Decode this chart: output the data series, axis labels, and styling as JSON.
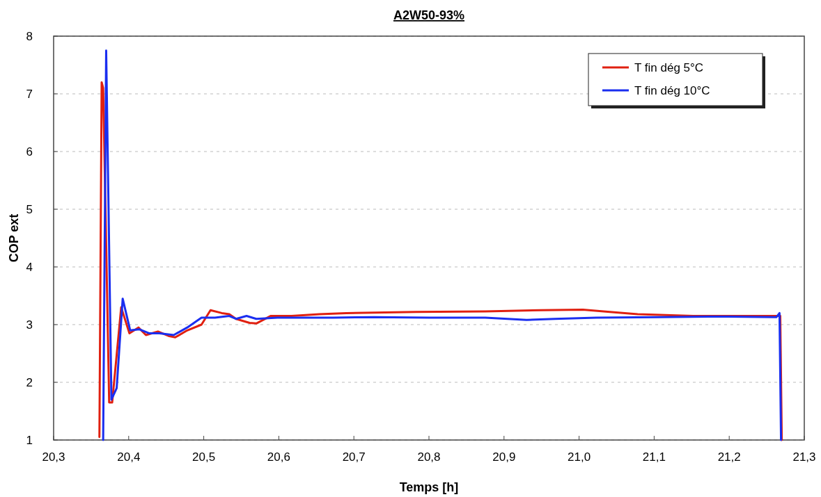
{
  "chart_data": {
    "type": "line",
    "title": "A2W50-93%",
    "xlabel": "Temps [h]",
    "ylabel": "COP ext",
    "xlim": [
      20.3,
      21.3
    ],
    "xticks": [
      {
        "value": 20.3,
        "label": "20,3"
      },
      {
        "value": 20.4,
        "label": "20,4"
      },
      {
        "value": 20.5,
        "label": "20,5"
      },
      {
        "value": 20.6,
        "label": "20,6"
      },
      {
        "value": 20.7,
        "label": "20,7"
      },
      {
        "value": 20.8,
        "label": "20,8"
      },
      {
        "value": 20.9,
        "label": "20,9"
      },
      {
        "value": 21.0,
        "label": "21,0"
      },
      {
        "value": 21.1,
        "label": "21,1"
      },
      {
        "value": 21.2,
        "label": "21,2"
      },
      {
        "value": 21.3,
        "label": "21,3"
      }
    ],
    "ylim": [
      1,
      8
    ],
    "yticks": [
      1,
      2,
      3,
      4,
      5,
      6,
      7,
      8
    ],
    "grid": "y",
    "legend": "top right",
    "line_style": "solid",
    "marker": "none",
    "series": [
      {
        "name": "T fin dég 5°C",
        "color": "#e02010",
        "x": [
          20.361,
          20.364,
          20.366,
          20.374,
          20.378,
          20.39,
          20.401,
          20.413,
          20.423,
          20.439,
          20.454,
          20.462,
          20.478,
          20.497,
          20.509,
          20.524,
          20.534,
          20.543,
          20.561,
          20.57,
          20.589,
          20.617,
          20.654,
          20.69,
          20.783,
          20.875,
          20.949,
          21.005,
          21.041,
          21.078,
          21.152,
          21.245,
          21.268,
          21.27
        ],
        "values": [
          1.05,
          7.2,
          7.1,
          1.65,
          1.65,
          3.3,
          2.85,
          2.95,
          2.82,
          2.88,
          2.8,
          2.78,
          2.9,
          3.0,
          3.25,
          3.2,
          3.18,
          3.1,
          3.03,
          3.02,
          3.15,
          3.15,
          3.18,
          3.2,
          3.22,
          3.23,
          3.25,
          3.26,
          3.22,
          3.18,
          3.15,
          3.15,
          3.15,
          1.0
        ]
      },
      {
        "name": "T fin dég 10°C",
        "color": "#1a2ef0",
        "x": [
          20.366,
          20.37,
          20.377,
          20.384,
          20.392,
          20.402,
          20.414,
          20.427,
          20.441,
          20.46,
          20.478,
          20.497,
          20.515,
          20.534,
          20.543,
          20.557,
          20.57,
          20.598,
          20.672,
          20.727,
          20.801,
          20.875,
          20.93,
          20.968,
          21.023,
          21.106,
          21.198,
          21.263,
          21.267,
          21.269
        ],
        "values": [
          1.0,
          7.75,
          1.7,
          1.9,
          3.45,
          2.9,
          2.92,
          2.85,
          2.85,
          2.82,
          2.95,
          3.12,
          3.12,
          3.15,
          3.1,
          3.15,
          3.1,
          3.12,
          3.12,
          3.13,
          3.12,
          3.12,
          3.08,
          3.1,
          3.12,
          3.13,
          3.14,
          3.13,
          3.2,
          1.0
        ]
      }
    ]
  }
}
